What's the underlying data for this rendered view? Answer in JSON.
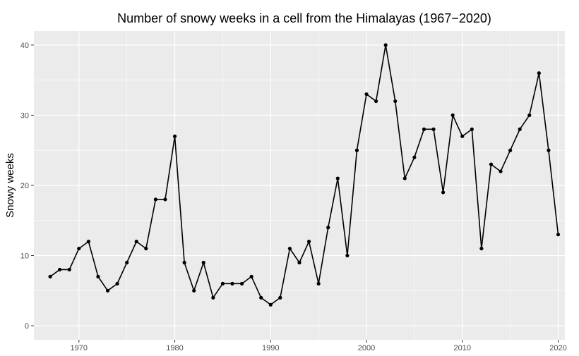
{
  "chart_data": {
    "type": "line",
    "title": "Number of snowy weeks in a cell from the Himalayas (1967−2020)",
    "xlabel": "",
    "ylabel": "Snowy weeks",
    "xlim": [
      1965.3,
      2020.7
    ],
    "ylim": [
      -2,
      42
    ],
    "x_ticks": [
      1970,
      1980,
      1990,
      2000,
      2010,
      2020
    ],
    "x_tick_labels": [
      "1970",
      "1980",
      "1990",
      "2000",
      "2010",
      "2020"
    ],
    "y_ticks": [
      0,
      10,
      20,
      30,
      40
    ],
    "y_tick_labels": [
      "0",
      "10",
      "20",
      "30",
      "40"
    ],
    "grid": true,
    "background": "#ebebeb",
    "line_color": "#000000",
    "series": [
      {
        "x": [
          1967,
          1968,
          1969,
          1970,
          1971,
          1972,
          1973,
          1974,
          1975,
          1976,
          1977,
          1978,
          1979,
          1980,
          1981,
          1982,
          1983,
          1984,
          1985,
          1986,
          1987,
          1988,
          1989,
          1990,
          1991,
          1992,
          1993,
          1994,
          1995,
          1996,
          1997,
          1998,
          1999,
          2000,
          2001,
          2002,
          2003,
          2004,
          2005,
          2006,
          2007,
          2008,
          2009,
          2010,
          2011,
          2012,
          2013,
          2014,
          2015,
          2016,
          2017,
          2018,
          2019,
          2020
        ],
        "values": [
          7,
          8,
          8,
          11,
          12,
          7,
          5,
          6,
          9,
          12,
          11,
          18,
          18,
          27,
          9,
          5,
          9,
          4,
          6,
          6,
          6,
          7,
          4,
          3,
          4,
          11,
          9,
          12,
          6,
          14,
          21,
          10,
          25,
          33,
          32,
          40,
          32,
          21,
          24,
          28,
          28,
          19,
          30,
          27,
          28,
          11,
          23,
          22,
          25,
          28,
          30,
          36,
          25,
          13
        ]
      }
    ]
  }
}
